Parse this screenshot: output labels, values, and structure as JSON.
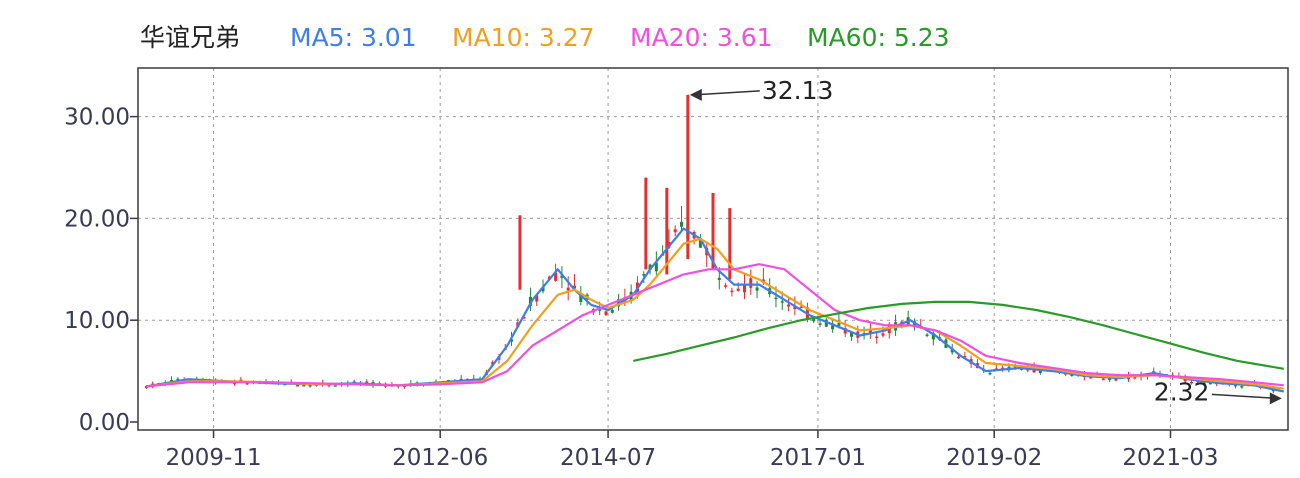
{
  "chart_data": {
    "type": "line",
    "title": "华谊兄弟",
    "legend": [
      {
        "label": "MA5: 3.01",
        "color": "#3f7de8"
      },
      {
        "label": "MA10: 3.27",
        "color": "#f0a020"
      },
      {
        "label": "MA20: 3.61",
        "color": "#f050e0"
      },
      {
        "label": "MA60: 5.23",
        "color": "#2a9a2a"
      }
    ],
    "y_ticks": [
      "0.00",
      "10.00",
      "20.00",
      "30.00"
    ],
    "x_ticks": [
      "2009-11",
      "2012-06",
      "2014-07",
      "2017-01",
      "2019-02",
      "2021-03"
    ],
    "ylim": [
      0,
      34
    ],
    "grid": true,
    "annotations": [
      {
        "text": "32.13",
        "x": 2015.45,
        "y": 32.13
      },
      {
        "text": "2.32",
        "x": 2022.55,
        "y": 2.32
      }
    ],
    "series": [
      {
        "color": "#3f7de8",
        "x": [
          2009.0,
          2009.5,
          2010.0,
          2010.5,
          2011.0,
          2011.5,
          2012.0,
          2012.5,
          2013.0,
          2013.3,
          2013.6,
          2013.9,
          2014.1,
          2014.3,
          2014.5,
          2014.8,
          2015.0,
          2015.2,
          2015.4,
          2015.6,
          2015.8,
          2016.0,
          2016.3,
          2016.6,
          2016.9,
          2017.2,
          2017.5,
          2017.8,
          2018.1,
          2018.4,
          2018.7,
          2019.0,
          2019.4,
          2019.8,
          2020.2,
          2020.6,
          2021.0,
          2021.4,
          2021.8,
          2022.2,
          2022.55
        ],
        "values": [
          3.5,
          4.2,
          4.0,
          3.8,
          3.7,
          3.8,
          3.6,
          3.9,
          4.2,
          7.5,
          12.0,
          15.0,
          13.0,
          11.5,
          11.0,
          12.5,
          15.0,
          17.0,
          19.0,
          18.0,
          15.0,
          13.5,
          13.5,
          12.0,
          10.5,
          9.5,
          8.5,
          9.0,
          10.0,
          8.5,
          6.5,
          5.0,
          5.3,
          5.0,
          4.5,
          4.3,
          4.8,
          4.2,
          3.8,
          3.6,
          3.0
        ]
      },
      {
        "color": "#f0a020",
        "x": [
          2009.0,
          2009.5,
          2010.0,
          2010.5,
          2011.0,
          2011.5,
          2012.0,
          2012.5,
          2013.0,
          2013.3,
          2013.6,
          2013.9,
          2014.1,
          2014.3,
          2014.5,
          2014.8,
          2015.0,
          2015.2,
          2015.4,
          2015.6,
          2015.8,
          2016.0,
          2016.3,
          2016.6,
          2016.9,
          2017.2,
          2017.5,
          2017.8,
          2018.1,
          2018.4,
          2018.7,
          2019.0,
          2019.4,
          2019.8,
          2020.2,
          2020.6,
          2021.0,
          2021.4,
          2021.8,
          2022.2,
          2022.55
        ],
        "values": [
          3.5,
          4.0,
          4.0,
          3.9,
          3.7,
          3.7,
          3.6,
          3.8,
          4.0,
          6.0,
          9.5,
          12.5,
          13.0,
          12.0,
          11.2,
          12.0,
          13.5,
          15.5,
          17.5,
          18.0,
          17.0,
          15.0,
          14.0,
          12.5,
          11.0,
          10.0,
          9.0,
          9.2,
          9.5,
          9.0,
          7.5,
          5.8,
          5.5,
          5.2,
          4.6,
          4.4,
          4.6,
          4.3,
          4.0,
          3.7,
          3.27
        ]
      },
      {
        "color": "#f050e0",
        "x": [
          2009.0,
          2009.5,
          2010.0,
          2010.5,
          2011.0,
          2011.5,
          2012.0,
          2012.5,
          2013.0,
          2013.3,
          2013.6,
          2013.9,
          2014.2,
          2014.5,
          2014.8,
          2015.1,
          2015.4,
          2015.7,
          2016.0,
          2016.3,
          2016.6,
          2016.9,
          2017.2,
          2017.5,
          2017.8,
          2018.1,
          2018.4,
          2018.7,
          2019.0,
          2019.4,
          2019.8,
          2020.2,
          2020.6,
          2021.0,
          2021.4,
          2021.8,
          2022.2,
          2022.55
        ],
        "values": [
          3.5,
          3.9,
          3.9,
          3.9,
          3.8,
          3.7,
          3.6,
          3.7,
          3.9,
          5.0,
          7.5,
          9.0,
          10.5,
          11.5,
          12.5,
          13.5,
          14.5,
          15.0,
          15.0,
          15.5,
          15.0,
          13.0,
          11.0,
          10.0,
          9.5,
          9.5,
          9.0,
          8.0,
          6.5,
          5.8,
          5.3,
          4.8,
          4.6,
          4.6,
          4.4,
          4.2,
          3.9,
          3.61
        ]
      },
      {
        "color": "#2a9a2a",
        "x": [
          2014.8,
          2015.2,
          2015.6,
          2016.0,
          2016.4,
          2016.8,
          2017.2,
          2017.6,
          2018.0,
          2018.4,
          2018.8,
          2019.2,
          2019.6,
          2020.0,
          2020.4,
          2020.8,
          2021.2,
          2021.6,
          2022.0,
          2022.55
        ],
        "values": [
          6.0,
          6.7,
          7.5,
          8.3,
          9.2,
          10.0,
          10.6,
          11.2,
          11.6,
          11.8,
          11.8,
          11.5,
          11.0,
          10.3,
          9.5,
          8.6,
          7.7,
          6.8,
          6.0,
          5.23
        ]
      }
    ]
  }
}
